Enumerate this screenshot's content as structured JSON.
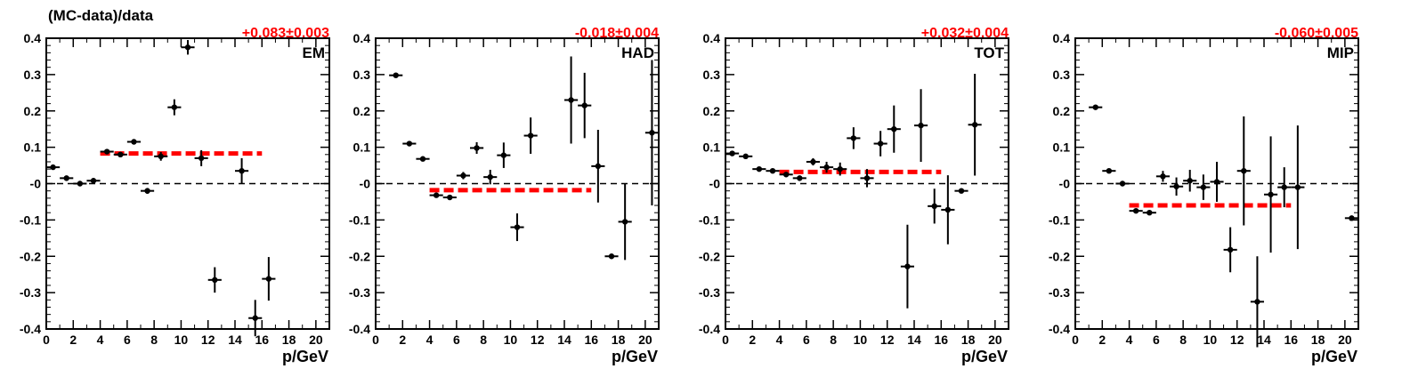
{
  "figure": {
    "ylabel": "(MC-data)/data"
  },
  "chart_data": [
    {
      "type": "scatter",
      "label": "EM",
      "fit_value": "+0.083±0.003",
      "fit_level": 0.083,
      "fit_range": [
        4,
        16
      ],
      "xlabel": "p/GeV",
      "ylabel": "(MC-data)/data",
      "xlim": [
        0,
        21
      ],
      "ylim": [
        -0.4,
        0.4
      ],
      "xticks": [
        "0",
        "2",
        "4",
        "6",
        "8",
        "10",
        "12",
        "14",
        "16",
        "18",
        "20"
      ],
      "yticks": [
        "-0.4",
        "-0.3",
        "-0.2",
        "-0.1",
        "-0",
        "0.1",
        "0.2",
        "0.3",
        "0.4"
      ],
      "reference_line": 0,
      "points": [
        {
          "x": 0.5,
          "y": 0.045,
          "err": 0.006
        },
        {
          "x": 1.5,
          "y": 0.015,
          "err": 0.006
        },
        {
          "x": 2.5,
          "y": 0.0,
          "err": 0.005
        },
        {
          "x": 3.5,
          "y": 0.008,
          "err": 0.007
        },
        {
          "x": 4.5,
          "y": 0.088,
          "err": 0.005
        },
        {
          "x": 5.5,
          "y": 0.08,
          "err": 0.005
        },
        {
          "x": 6.5,
          "y": 0.115,
          "err": 0.007
        },
        {
          "x": 7.5,
          "y": -0.02,
          "err": 0.008
        },
        {
          "x": 8.5,
          "y": 0.075,
          "err": 0.012
        },
        {
          "x": 9.5,
          "y": 0.21,
          "err": 0.022
        },
        {
          "x": 10.5,
          "y": 0.375,
          "err": 0.02
        },
        {
          "x": 11.5,
          "y": 0.07,
          "err": 0.022
        },
        {
          "x": 12.5,
          "y": -0.265,
          "err": 0.035
        },
        {
          "x": 14.5,
          "y": 0.035,
          "err": 0.035
        },
        {
          "x": 15.5,
          "y": -0.37,
          "err": 0.05
        },
        {
          "x": 16.5,
          "y": -0.262,
          "err": 0.06
        }
      ]
    },
    {
      "type": "scatter",
      "label": "HAD",
      "fit_value": "-0.018±0.004",
      "fit_level": -0.018,
      "fit_range": [
        4,
        16
      ],
      "xlabel": "p/GeV",
      "xlim": [
        0,
        21
      ],
      "ylim": [
        -0.4,
        0.4
      ],
      "xticks": [
        "0",
        "2",
        "4",
        "6",
        "8",
        "10",
        "12",
        "14",
        "16",
        "18",
        "20"
      ],
      "yticks": [
        "-0.4",
        "-0.3",
        "-0.2",
        "-0.1",
        "-0",
        "0.1",
        "0.2",
        "0.3",
        "0.4"
      ],
      "reference_line": 0,
      "points": [
        {
          "x": 1.5,
          "y": 0.298,
          "err": 0.005
        },
        {
          "x": 2.5,
          "y": 0.11,
          "err": 0.005
        },
        {
          "x": 3.5,
          "y": 0.068,
          "err": 0.005
        },
        {
          "x": 4.5,
          "y": -0.032,
          "err": 0.005
        },
        {
          "x": 5.5,
          "y": -0.038,
          "err": 0.005
        },
        {
          "x": 6.5,
          "y": 0.022,
          "err": 0.01
        },
        {
          "x": 7.5,
          "y": 0.098,
          "err": 0.016
        },
        {
          "x": 8.5,
          "y": 0.018,
          "err": 0.02
        },
        {
          "x": 9.5,
          "y": 0.078,
          "err": 0.035
        },
        {
          "x": 10.5,
          "y": -0.12,
          "err": 0.038
        },
        {
          "x": 11.5,
          "y": 0.132,
          "err": 0.05
        },
        {
          "x": 14.5,
          "y": 0.23,
          "err": 0.12
        },
        {
          "x": 15.5,
          "y": 0.215,
          "err": 0.09
        },
        {
          "x": 16.5,
          "y": 0.048,
          "err": 0.1
        },
        {
          "x": 17.5,
          "y": -0.2,
          "err": 0.004
        },
        {
          "x": 18.5,
          "y": -0.105,
          "err": 0.105
        },
        {
          "x": 20.5,
          "y": 0.14,
          "err": 0.2
        }
      ]
    },
    {
      "type": "scatter",
      "label": "TOT",
      "fit_value": "+0.032±0.004",
      "fit_level": 0.032,
      "fit_range": [
        4,
        16
      ],
      "xlabel": "p/GeV",
      "xlim": [
        0,
        21
      ],
      "ylim": [
        -0.4,
        0.4
      ],
      "xticks": [
        "0",
        "2",
        "4",
        "6",
        "8",
        "10",
        "12",
        "14",
        "16",
        "18",
        "20"
      ],
      "yticks": [
        "-0.4",
        "-0.3",
        "-0.2",
        "-0.1",
        "-0",
        "0.1",
        "0.2",
        "0.3",
        "0.4"
      ],
      "reference_line": 0,
      "points": [
        {
          "x": 0.5,
          "y": 0.083,
          "err": 0.004
        },
        {
          "x": 1.5,
          "y": 0.075,
          "err": 0.004
        },
        {
          "x": 2.5,
          "y": 0.04,
          "err": 0.004
        },
        {
          "x": 3.5,
          "y": 0.035,
          "err": 0.004
        },
        {
          "x": 4.5,
          "y": 0.025,
          "err": 0.004
        },
        {
          "x": 5.5,
          "y": 0.015,
          "err": 0.005
        },
        {
          "x": 6.5,
          "y": 0.06,
          "err": 0.01
        },
        {
          "x": 7.5,
          "y": 0.045,
          "err": 0.015
        },
        {
          "x": 8.5,
          "y": 0.04,
          "err": 0.018
        },
        {
          "x": 9.5,
          "y": 0.125,
          "err": 0.03
        },
        {
          "x": 10.5,
          "y": 0.015,
          "err": 0.025
        },
        {
          "x": 11.5,
          "y": 0.11,
          "err": 0.035
        },
        {
          "x": 12.5,
          "y": 0.15,
          "err": 0.065
        },
        {
          "x": 13.5,
          "y": -0.228,
          "err": 0.115
        },
        {
          "x": 14.5,
          "y": 0.16,
          "err": 0.1
        },
        {
          "x": 15.5,
          "y": -0.062,
          "err": 0.048
        },
        {
          "x": 16.5,
          "y": -0.072,
          "err": 0.095
        },
        {
          "x": 17.5,
          "y": -0.02,
          "err": 0.004
        },
        {
          "x": 18.5,
          "y": 0.162,
          "err": 0.14
        }
      ]
    },
    {
      "type": "scatter",
      "label": "MIP",
      "fit_value": "-0.060±0.005",
      "fit_level": -0.06,
      "fit_range": [
        4,
        16
      ],
      "xlabel": "p/GeV",
      "xlim": [
        0,
        21
      ],
      "ylim": [
        -0.4,
        0.4
      ],
      "xticks": [
        "0",
        "2",
        "4",
        "6",
        "8",
        "10",
        "12",
        "14",
        "16",
        "18",
        "20"
      ],
      "yticks": [
        "-0.4",
        "-0.3",
        "-0.2",
        "-0.1",
        "-0",
        "0.1",
        "0.2",
        "0.3",
        "0.4"
      ],
      "reference_line": 0,
      "points": [
        {
          "x": 1.5,
          "y": 0.21,
          "err": 0.004
        },
        {
          "x": 2.5,
          "y": 0.035,
          "err": 0.005
        },
        {
          "x": 3.5,
          "y": 0.0,
          "err": 0.004
        },
        {
          "x": 4.5,
          "y": -0.075,
          "err": 0.005
        },
        {
          "x": 5.5,
          "y": -0.08,
          "err": 0.006
        },
        {
          "x": 6.5,
          "y": 0.02,
          "err": 0.015
        },
        {
          "x": 7.5,
          "y": -0.008,
          "err": 0.025
        },
        {
          "x": 8.5,
          "y": 0.008,
          "err": 0.03
        },
        {
          "x": 9.5,
          "y": -0.01,
          "err": 0.035
        },
        {
          "x": 10.5,
          "y": 0.005,
          "err": 0.055
        },
        {
          "x": 11.5,
          "y": -0.182,
          "err": 0.062
        },
        {
          "x": 12.5,
          "y": 0.035,
          "err": 0.15
        },
        {
          "x": 13.5,
          "y": -0.325,
          "err": 0.125
        },
        {
          "x": 14.5,
          "y": -0.03,
          "err": 0.16
        },
        {
          "x": 15.5,
          "y": -0.01,
          "err": 0.055
        },
        {
          "x": 16.5,
          "y": -0.01,
          "err": 0.17
        },
        {
          "x": 20.5,
          "y": -0.095,
          "err": 0.004
        }
      ]
    }
  ],
  "colors": {
    "fit": "#ff0000",
    "axis": "#000000",
    "reference": "#000000",
    "points": "#000000"
  }
}
